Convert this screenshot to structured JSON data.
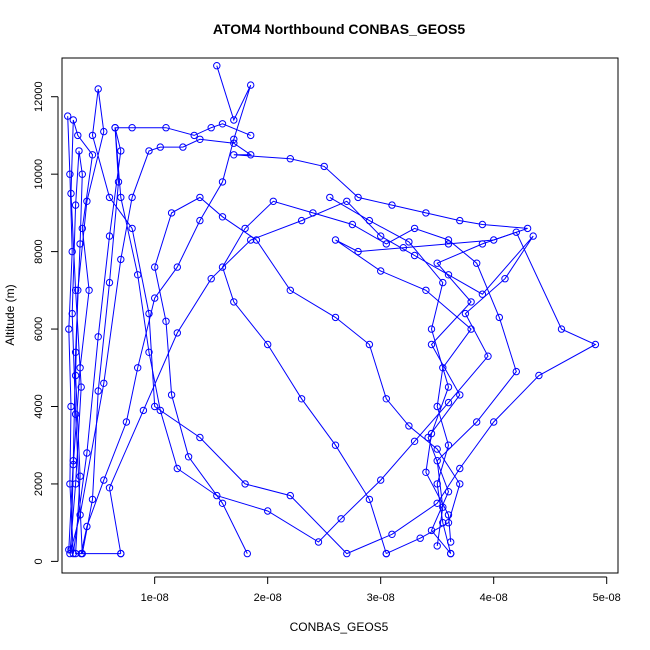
{
  "chart_data": {
    "type": "line",
    "title": "ATOM4 Northbound CONBAS_GEOS5",
    "xlabel": "CONBAS_GEOS5",
    "ylabel": "Altitude (m)",
    "xlim": [
      1.8e-09,
      5.1e-08
    ],
    "ylim": [
      -300,
      13000
    ],
    "x_ticks": [
      1e-08,
      2e-08,
      3e-08,
      4e-08,
      5e-08
    ],
    "x_tick_labels": [
      "1e-08",
      "2e-08",
      "3e-08",
      "4e-08",
      "5e-08"
    ],
    "y_ticks": [
      0,
      2000,
      4000,
      6000,
      8000,
      10000,
      12000
    ],
    "y_tick_labels": [
      "0",
      "2000",
      "4000",
      "6000",
      "8000",
      "10000",
      "12000"
    ],
    "series_color": "#0000ff",
    "marker": "open-circle",
    "grid": false,
    "series": [
      {
        "points": [
          [
            2.5e-09,
            200
          ],
          [
            3e-09,
            2000
          ],
          [
            3.5e-09,
            4500
          ],
          [
            3e-09,
            7000
          ],
          [
            2.6e-09,
            9500
          ],
          [
            2.8e-09,
            11400
          ],
          [
            3.2e-09,
            11000
          ],
          [
            4.5e-09,
            10500
          ],
          [
            3.6e-09,
            8600
          ],
          [
            4.2e-09,
            7000
          ],
          [
            3.4e-09,
            5000
          ],
          [
            2.8e-09,
            2500
          ],
          [
            2.6e-09,
            300
          ],
          [
            3.4e-09,
            1200
          ],
          [
            5.5e-09,
            4600
          ],
          [
            7e-09,
            7800
          ],
          [
            8e-09,
            9400
          ],
          [
            9.5e-09,
            10600
          ],
          [
            1.05e-08,
            10700
          ],
          [
            1.25e-08,
            10700
          ],
          [
            1.4e-08,
            10900
          ],
          [
            1.7e-08,
            10800
          ],
          [
            1.85e-08,
            10500
          ],
          [
            1.7e-08,
            10500
          ],
          [
            2.2e-08,
            10400
          ],
          [
            2.5e-08,
            10200
          ],
          [
            2.8e-08,
            9400
          ],
          [
            3.1e-08,
            9200
          ],
          [
            3.4e-08,
            9000
          ],
          [
            3.7e-08,
            8800
          ],
          [
            3.9e-08,
            8700
          ],
          [
            4.3e-08,
            8600
          ],
          [
            4e-08,
            8300
          ],
          [
            3.6e-08,
            8200
          ],
          [
            3.2e-08,
            8100
          ],
          [
            2.8e-08,
            8000
          ],
          [
            2.6e-08,
            8300
          ],
          [
            3e-08,
            7500
          ],
          [
            3.4e-08,
            7000
          ],
          [
            3.8e-08,
            6000
          ],
          [
            3.55e-08,
            5000
          ],
          [
            3.5e-08,
            4000
          ],
          [
            3.6e-08,
            3000
          ],
          [
            3.5e-08,
            2000
          ],
          [
            3.55e-08,
            1000
          ],
          [
            3.62e-08,
            200
          ]
        ]
      },
      {
        "points": [
          [
            3.62e-08,
            200
          ],
          [
            3.45e-08,
            800
          ],
          [
            3.6e-08,
            1800
          ],
          [
            3.42e-08,
            3200
          ],
          [
            3.7e-08,
            4300
          ],
          [
            3.45e-08,
            5600
          ],
          [
            3.8e-08,
            6700
          ],
          [
            3.5e-08,
            7700
          ],
          [
            3.9e-08,
            8200
          ],
          [
            4.2e-08,
            8500
          ],
          [
            4.6e-08,
            6000
          ],
          [
            4.9e-08,
            5600
          ],
          [
            4.4e-08,
            4800
          ],
          [
            4e-08,
            3600
          ],
          [
            3.7e-08,
            2400
          ],
          [
            3.5e-08,
            1500
          ],
          [
            3.1e-08,
            700
          ],
          [
            2.7e-08,
            200
          ],
          [
            2.2e-08,
            1700
          ],
          [
            1.8e-08,
            2000
          ],
          [
            1.4e-08,
            3200
          ],
          [
            1e-08,
            4000
          ],
          [
            9.5e-09,
            6400
          ],
          [
            8e-09,
            8600
          ],
          [
            6e-09,
            9400
          ],
          [
            4.5e-09,
            11000
          ],
          [
            5e-09,
            12200
          ],
          [
            5.5e-09,
            11100
          ],
          [
            4e-09,
            9300
          ],
          [
            3.2e-09,
            7000
          ],
          [
            3e-09,
            4800
          ],
          [
            3.4e-09,
            2200
          ],
          [
            3e-09,
            200
          ],
          [
            7e-09,
            200
          ]
        ]
      },
      {
        "points": [
          [
            7e-09,
            200
          ],
          [
            6e-09,
            1900
          ],
          [
            9e-09,
            3900
          ],
          [
            1.2e-08,
            5900
          ],
          [
            1.5e-08,
            7300
          ],
          [
            1.85e-08,
            8300
          ],
          [
            2.3e-08,
            8800
          ],
          [
            2.7e-08,
            9300
          ],
          [
            3e-08,
            8400
          ],
          [
            3.3e-08,
            7900
          ],
          [
            3.6e-08,
            7400
          ],
          [
            3.9e-08,
            6900
          ],
          [
            4.35e-08,
            8400
          ],
          [
            4.1e-08,
            7300
          ],
          [
            3.75e-08,
            6400
          ],
          [
            3.95e-08,
            5300
          ],
          [
            3.6e-08,
            4100
          ],
          [
            3.3e-08,
            3100
          ],
          [
            3e-08,
            2100
          ],
          [
            2.65e-08,
            1100
          ],
          [
            2.45e-08,
            500
          ],
          [
            2e-08,
            1300
          ],
          [
            1.55e-08,
            1700
          ],
          [
            1.2e-08,
            2400
          ],
          [
            1.05e-08,
            3900
          ],
          [
            9.5e-09,
            5400
          ],
          [
            8.5e-09,
            7400
          ],
          [
            7e-09,
            9400
          ],
          [
            6.5e-09,
            11200
          ],
          [
            8e-09,
            11200
          ],
          [
            1.1e-08,
            11200
          ],
          [
            1.35e-08,
            11000
          ],
          [
            1.5e-08,
            11200
          ],
          [
            1.6e-08,
            11300
          ],
          [
            1.85e-08,
            11000
          ]
        ]
      },
      {
        "points": [
          [
            2.3e-09,
            11500
          ],
          [
            2.5e-09,
            10000
          ],
          [
            2.7e-09,
            8000
          ],
          [
            2.4e-09,
            6000
          ],
          [
            2.6e-09,
            4000
          ],
          [
            2.5e-09,
            2000
          ],
          [
            2.8e-09,
            200
          ],
          [
            4e-09,
            2800
          ],
          [
            5e-09,
            5800
          ],
          [
            6e-09,
            8400
          ],
          [
            7e-09,
            10600
          ],
          [
            6.5e-09,
            11200
          ],
          [
            6.8e-09,
            9800
          ],
          [
            6e-09,
            7200
          ],
          [
            5e-09,
            4400
          ],
          [
            4.5e-09,
            1600
          ],
          [
            3.6e-09,
            200
          ],
          [
            3e-09,
            3800
          ],
          [
            2.7e-09,
            6400
          ],
          [
            3e-09,
            9200
          ],
          [
            3.3e-09,
            10600
          ],
          [
            3.6e-09,
            10000
          ],
          [
            3.4e-09,
            8200
          ],
          [
            3e-09,
            5400
          ],
          [
            2.8e-09,
            2600
          ],
          [
            2.4e-09,
            300
          ]
        ]
      },
      {
        "points": [
          [
            1.82e-08,
            200
          ],
          [
            1.6e-08,
            1500
          ],
          [
            1.3e-08,
            2700
          ],
          [
            1.15e-08,
            4300
          ],
          [
            1.1e-08,
            6200
          ],
          [
            1e-08,
            7600
          ],
          [
            1.15e-08,
            9000
          ],
          [
            1.4e-08,
            9400
          ],
          [
            1.6e-08,
            8900
          ],
          [
            1.9e-08,
            8300
          ],
          [
            2.2e-08,
            7000
          ],
          [
            2.6e-08,
            6300
          ],
          [
            2.9e-08,
            5600
          ],
          [
            3.05e-08,
            4200
          ],
          [
            3.25e-08,
            3500
          ],
          [
            3.5e-08,
            2900
          ],
          [
            3.7e-08,
            2000
          ],
          [
            3.6e-08,
            1000
          ],
          [
            3.35e-08,
            600
          ],
          [
            3.05e-08,
            200
          ]
        ]
      },
      {
        "points": [
          [
            3.05e-08,
            200
          ],
          [
            2.9e-08,
            1600
          ],
          [
            2.6e-08,
            3000
          ],
          [
            2.3e-08,
            4200
          ],
          [
            2e-08,
            5600
          ],
          [
            1.7e-08,
            6700
          ],
          [
            1.6e-08,
            7600
          ],
          [
            1.8e-08,
            8600
          ],
          [
            2.05e-08,
            9300
          ],
          [
            2.4e-08,
            9000
          ],
          [
            2.75e-08,
            8700
          ],
          [
            3.05e-08,
            8200
          ],
          [
            3.3e-08,
            8600
          ],
          [
            3.6e-08,
            8300
          ],
          [
            3.85e-08,
            7700
          ],
          [
            4.05e-08,
            6300
          ],
          [
            4.2e-08,
            4900
          ],
          [
            3.85e-08,
            3600
          ],
          [
            3.5e-08,
            2600
          ],
          [
            3.55e-08,
            1400
          ],
          [
            3.5e-08,
            400
          ]
        ]
      },
      {
        "points": [
          [
            1.55e-08,
            12800
          ],
          [
            1.7e-08,
            11400
          ],
          [
            1.85e-08,
            12300
          ],
          [
            1.7e-08,
            10900
          ],
          [
            1.6e-08,
            9800
          ],
          [
            1.4e-08,
            8800
          ],
          [
            1.2e-08,
            7600
          ],
          [
            1e-08,
            6800
          ],
          [
            8.5e-09,
            5000
          ],
          [
            7.5e-09,
            3600
          ],
          [
            5.5e-09,
            2100
          ],
          [
            4e-09,
            900
          ],
          [
            3.5e-09,
            200
          ]
        ]
      },
      {
        "points": [
          [
            2.55e-08,
            9400
          ],
          [
            2.9e-08,
            8800
          ],
          [
            3.25e-08,
            8250
          ],
          [
            3.55e-08,
            7200
          ],
          [
            3.45e-08,
            6000
          ],
          [
            3.6e-08,
            4500
          ],
          [
            3.45e-08,
            3300
          ],
          [
            3.4e-08,
            2300
          ],
          [
            3.6e-08,
            1200
          ],
          [
            3.62e-08,
            500
          ]
        ]
      }
    ]
  }
}
